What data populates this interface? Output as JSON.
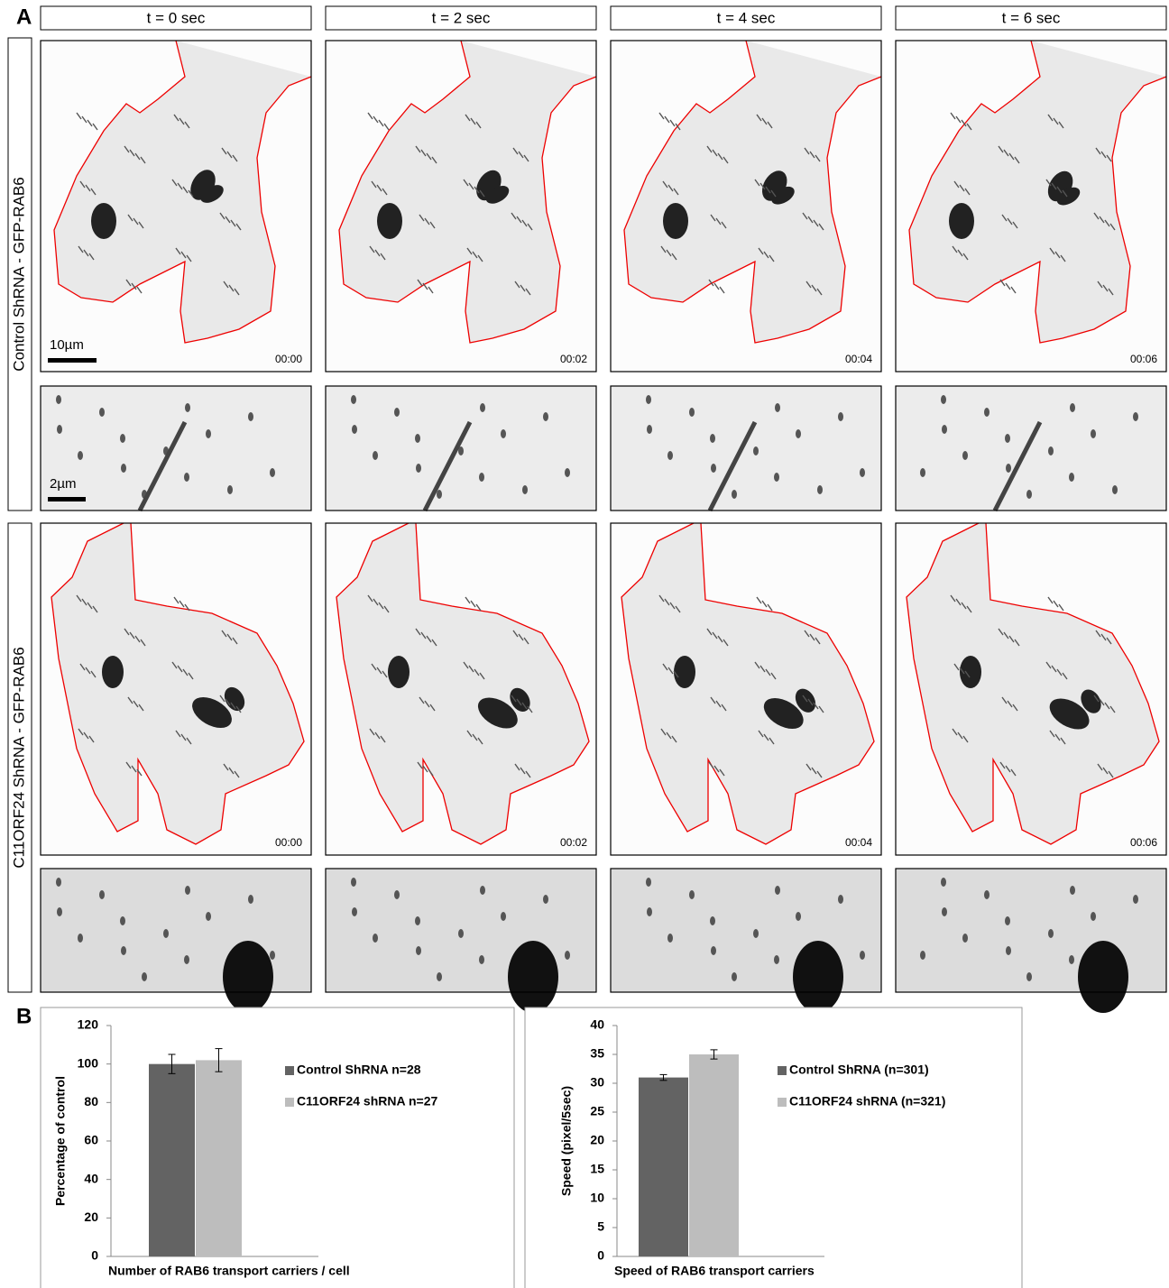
{
  "panel_a": {
    "label": "A",
    "columns": [
      "t = 0 sec",
      "t = 2 sec",
      "t = 4 sec",
      "t = 6 sec"
    ],
    "rows": [
      "Control ShRNA - GFP-RAB6",
      "C11ORF24 ShRNA - GFP-RAB6"
    ],
    "timestamps": [
      "00:00",
      "00:02",
      "00:04",
      "00:06"
    ],
    "scale_bars": [
      "10µm",
      "2µm"
    ]
  },
  "panel_b": {
    "label": "B"
  },
  "chart_data": [
    {
      "type": "bar",
      "categories": [
        null
      ],
      "xlabel": "Number of RAB6 transport carriers / cell",
      "ylabel": "Percentage of control",
      "series": [
        {
          "name": "Control ShRNA n=28",
          "color": "#636363",
          "values": [
            100
          ],
          "errors": [
            5
          ]
        },
        {
          "name": "C11ORF24 shRNA n=27",
          "color": "#bdbdbd",
          "values": [
            102
          ],
          "errors": [
            6
          ]
        }
      ],
      "ylim": [
        0,
        120
      ],
      "yticks": [
        0,
        20,
        40,
        60,
        80,
        100,
        120
      ],
      "legend": "right"
    },
    {
      "type": "bar",
      "categories": [
        null
      ],
      "xlabel": "Speed of RAB6 transport carriers",
      "ylabel": "Speed (pixel/5sec)",
      "series": [
        {
          "name": "Control ShRNA  (n=301)",
          "color": "#636363",
          "values": [
            31
          ],
          "errors": [
            0.5
          ]
        },
        {
          "name": "C11ORF24 shRNA (n=321)",
          "color": "#bdbdbd",
          "values": [
            35
          ],
          "errors": [
            0.8
          ]
        }
      ],
      "ylim": [
        0,
        40
      ],
      "yticks": [
        0,
        5,
        10,
        15,
        20,
        25,
        30,
        35,
        40
      ],
      "legend": "right"
    }
  ]
}
